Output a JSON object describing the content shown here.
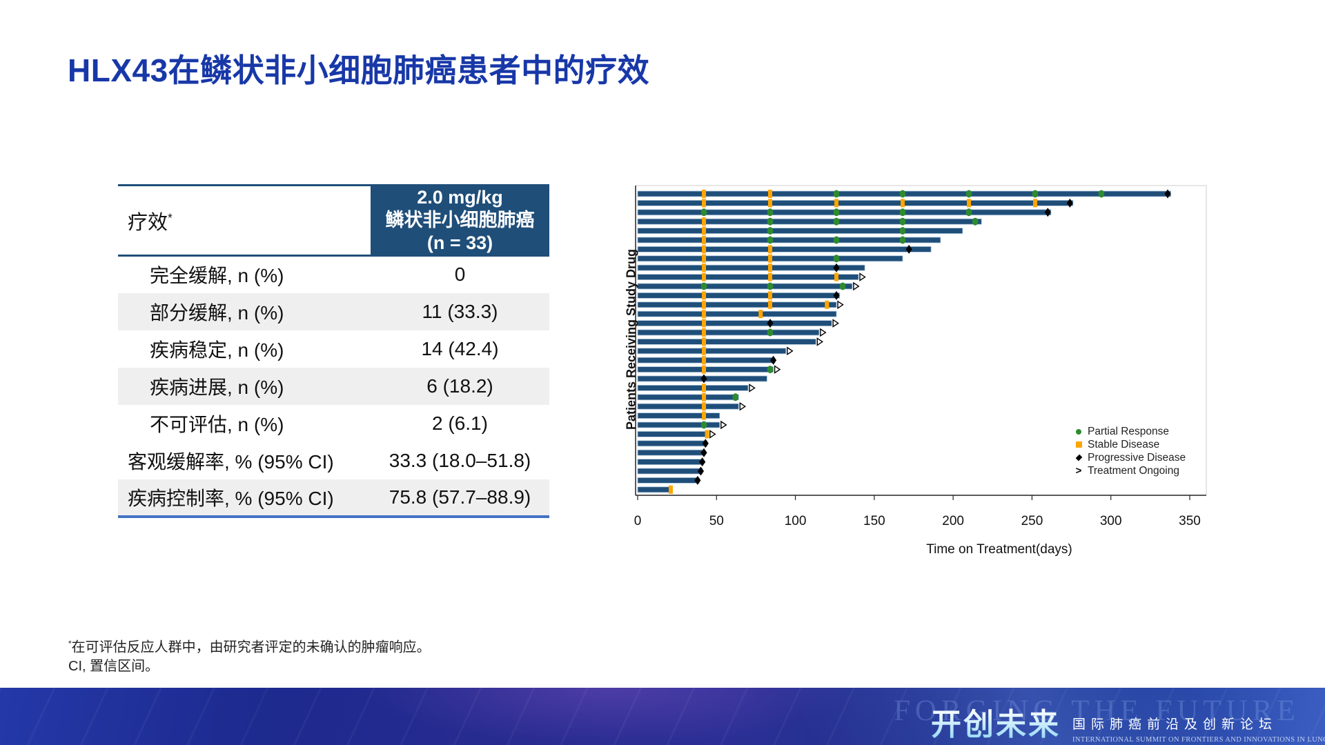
{
  "slide": {
    "title": "HLX43在鳞状非小细胞肺癌患者中的疗效",
    "footnote1_sup": "*",
    "footnote1": "在可评估反应人群中，由研究者评定的未确认的肿瘤响应。",
    "footnote2": "CI, 置信区间。"
  },
  "table": {
    "header_col1": "疗效",
    "header_col1_superscript": "*",
    "header_col2_lines": [
      "2.0 mg/kg",
      "鳞状非小细胞肺癌",
      "(n = 33)"
    ],
    "rows": [
      {
        "label": "完全缓解, n (%)",
        "value": "0",
        "indent": true,
        "shaded": false
      },
      {
        "label": "部分缓解, n (%)",
        "value": "11 (33.3)",
        "indent": true,
        "shaded": true
      },
      {
        "label": "疾病稳定, n (%)",
        "value": "14 (42.4)",
        "indent": true,
        "shaded": false
      },
      {
        "label": "疾病进展, n (%)",
        "value": "6 (18.2)",
        "indent": true,
        "shaded": true
      },
      {
        "label": "不可评估, n (%)",
        "value": "2 (6.1)",
        "indent": true,
        "shaded": false
      },
      {
        "label": "客观缓解率, % (95% CI)",
        "value": "33.3 (18.0–51.8)",
        "indent": false,
        "shaded": false
      },
      {
        "label": "疾病控制率, % (95% CI)",
        "value": "75.8 (57.7–88.9)",
        "indent": false,
        "shaded": true
      }
    ],
    "colors": {
      "header_bg": "#1F4E79",
      "row_alt_bg": "#EFEFEF",
      "top_border": "#1F4E79",
      "bottom_border": "#4472C4"
    }
  },
  "chart_data": {
    "type": "bar",
    "subtype": "swimmer-plot",
    "title": "",
    "xlabel": "Time on Treatment(days)",
    "ylabel": "Patients Receiving Study Drug",
    "x_ticks": [
      0,
      50,
      100,
      150,
      200,
      250,
      300,
      350
    ],
    "xlim": [
      0,
      360
    ],
    "grid": false,
    "legend_position": "lower-right",
    "legend": [
      {
        "label": "Partial Response",
        "marker": "circle",
        "color": "#2E8B2E"
      },
      {
        "label": "Stable Disease",
        "marker": "square",
        "color": "#FFA500"
      },
      {
        "label": "Progressive Disease",
        "marker": "diamond",
        "color": "#000000"
      },
      {
        "label": "Treatment Ongoing",
        "marker": "arrow",
        "color": "#000000"
      }
    ],
    "colors": {
      "bar": "#1F4E79",
      "bar_edge": "#A9C3DA",
      "PR": "#2E8B2E",
      "SD": "#FFA500",
      "PD": "#000000"
    },
    "patients": [
      {
        "days": 338,
        "ongoing": false,
        "events": [
          {
            "day": 42,
            "status": "SD"
          },
          {
            "day": 84,
            "status": "SD"
          },
          {
            "day": 126,
            "status": "PR"
          },
          {
            "day": 168,
            "status": "PR"
          },
          {
            "day": 210,
            "status": "PR"
          },
          {
            "day": 252,
            "status": "PR"
          },
          {
            "day": 294,
            "status": "PR"
          },
          {
            "day": 336,
            "status": "PD"
          }
        ]
      },
      {
        "days": 276,
        "ongoing": false,
        "events": [
          {
            "day": 42,
            "status": "SD"
          },
          {
            "day": 84,
            "status": "SD"
          },
          {
            "day": 126,
            "status": "SD"
          },
          {
            "day": 168,
            "status": "SD"
          },
          {
            "day": 210,
            "status": "SD"
          },
          {
            "day": 252,
            "status": "SD"
          },
          {
            "day": 274,
            "status": "PD"
          }
        ]
      },
      {
        "days": 262,
        "ongoing": false,
        "events": [
          {
            "day": 42,
            "status": "PR"
          },
          {
            "day": 84,
            "status": "PR"
          },
          {
            "day": 126,
            "status": "PR"
          },
          {
            "day": 168,
            "status": "PR"
          },
          {
            "day": 210,
            "status": "PR"
          },
          {
            "day": 260,
            "status": "PD"
          }
        ]
      },
      {
        "days": 218,
        "ongoing": false,
        "events": [
          {
            "day": 42,
            "status": "SD"
          },
          {
            "day": 84,
            "status": "PR"
          },
          {
            "day": 126,
            "status": "PR"
          },
          {
            "day": 168,
            "status": "PR"
          },
          {
            "day": 214,
            "status": "PR"
          }
        ]
      },
      {
        "days": 206,
        "ongoing": false,
        "events": [
          {
            "day": 42,
            "status": "SD"
          },
          {
            "day": 84,
            "status": "PR"
          },
          {
            "day": 168,
            "status": "PR"
          }
        ]
      },
      {
        "days": 192,
        "ongoing": false,
        "events": [
          {
            "day": 42,
            "status": "SD"
          },
          {
            "day": 84,
            "status": "PR"
          },
          {
            "day": 126,
            "status": "PR"
          },
          {
            "day": 168,
            "status": "PR"
          }
        ]
      },
      {
        "days": 186,
        "ongoing": false,
        "events": [
          {
            "day": 42,
            "status": "SD"
          },
          {
            "day": 84,
            "status": "SD"
          },
          {
            "day": 172,
            "status": "PD"
          }
        ]
      },
      {
        "days": 168,
        "ongoing": false,
        "events": [
          {
            "day": 42,
            "status": "SD"
          },
          {
            "day": 84,
            "status": "SD"
          },
          {
            "day": 126,
            "status": "PR"
          }
        ]
      },
      {
        "days": 144,
        "ongoing": false,
        "events": [
          {
            "day": 42,
            "status": "SD"
          },
          {
            "day": 84,
            "status": "SD"
          },
          {
            "day": 126,
            "status": "PD"
          }
        ]
      },
      {
        "days": 140,
        "ongoing": true,
        "events": [
          {
            "day": 42,
            "status": "SD"
          },
          {
            "day": 84,
            "status": "SD"
          },
          {
            "day": 126,
            "status": "SD"
          }
        ]
      },
      {
        "days": 136,
        "ongoing": true,
        "events": [
          {
            "day": 42,
            "status": "PR"
          },
          {
            "day": 84,
            "status": "PR"
          },
          {
            "day": 130,
            "status": "PR"
          }
        ]
      },
      {
        "days": 128,
        "ongoing": false,
        "events": [
          {
            "day": 42,
            "status": "SD"
          },
          {
            "day": 84,
            "status": "SD"
          },
          {
            "day": 126,
            "status": "PD"
          }
        ]
      },
      {
        "days": 126,
        "ongoing": true,
        "events": [
          {
            "day": 42,
            "status": "SD"
          },
          {
            "day": 84,
            "status": "SD"
          },
          {
            "day": 120,
            "status": "SD"
          }
        ]
      },
      {
        "days": 126,
        "ongoing": false,
        "events": [
          {
            "day": 42,
            "status": "SD"
          },
          {
            "day": 78,
            "status": "SD"
          }
        ]
      },
      {
        "days": 123,
        "ongoing": true,
        "events": [
          {
            "day": 42,
            "status": "SD"
          },
          {
            "day": 84,
            "status": "PD"
          }
        ]
      },
      {
        "days": 115,
        "ongoing": true,
        "events": [
          {
            "day": 42,
            "status": "SD"
          },
          {
            "day": 84,
            "status": "PR"
          }
        ]
      },
      {
        "days": 113,
        "ongoing": true,
        "events": [
          {
            "day": 42,
            "status": "SD"
          }
        ]
      },
      {
        "days": 94,
        "ongoing": true,
        "events": [
          {
            "day": 42,
            "status": "SD"
          }
        ]
      },
      {
        "days": 87,
        "ongoing": false,
        "events": [
          {
            "day": 42,
            "status": "SD"
          },
          {
            "day": 86,
            "status": "PD"
          }
        ]
      },
      {
        "days": 86,
        "ongoing": true,
        "events": [
          {
            "day": 42,
            "status": "SD"
          },
          {
            "day": 84,
            "status": "PR"
          }
        ]
      },
      {
        "days": 82,
        "ongoing": false,
        "events": [
          {
            "day": 42,
            "status": "PD"
          }
        ]
      },
      {
        "days": 70,
        "ongoing": true,
        "events": [
          {
            "day": 42,
            "status": "SD"
          }
        ]
      },
      {
        "days": 64,
        "ongoing": false,
        "events": [
          {
            "day": 42,
            "status": "SD"
          },
          {
            "day": 62,
            "status": "PR"
          }
        ]
      },
      {
        "days": 64,
        "ongoing": true,
        "events": [
          {
            "day": 42,
            "status": "SD"
          }
        ]
      },
      {
        "days": 52,
        "ongoing": false,
        "events": [
          {
            "day": 42,
            "status": "SD"
          }
        ]
      },
      {
        "days": 52,
        "ongoing": true,
        "events": [
          {
            "day": 42,
            "status": "PR"
          }
        ]
      },
      {
        "days": 45,
        "ongoing": true,
        "events": [
          {
            "day": 44,
            "status": "SD"
          }
        ]
      },
      {
        "days": 44,
        "ongoing": false,
        "events": [
          {
            "day": 43,
            "status": "PD"
          }
        ]
      },
      {
        "days": 42,
        "ongoing": false,
        "events": [
          {
            "day": 42,
            "status": "PD"
          }
        ]
      },
      {
        "days": 41,
        "ongoing": false,
        "events": [
          {
            "day": 41,
            "status": "PD"
          }
        ]
      },
      {
        "days": 41,
        "ongoing": false,
        "events": [
          {
            "day": 40,
            "status": "PD"
          }
        ]
      },
      {
        "days": 39,
        "ongoing": false,
        "events": [
          {
            "day": 38,
            "status": "PD"
          }
        ]
      },
      {
        "days": 22,
        "ongoing": false,
        "events": [
          {
            "day": 21,
            "status": "SD"
          }
        ]
      }
    ]
  },
  "footer": {
    "watermark": "FORGING THE FUTURE",
    "logo_cn": "开创未来",
    "summit_cn": "国际肺癌前沿及创新论坛",
    "summit_en": "INTERNATIONAL SUMMIT ON FRONTIERS AND INNOVATIONS IN LUNG CANCER"
  }
}
